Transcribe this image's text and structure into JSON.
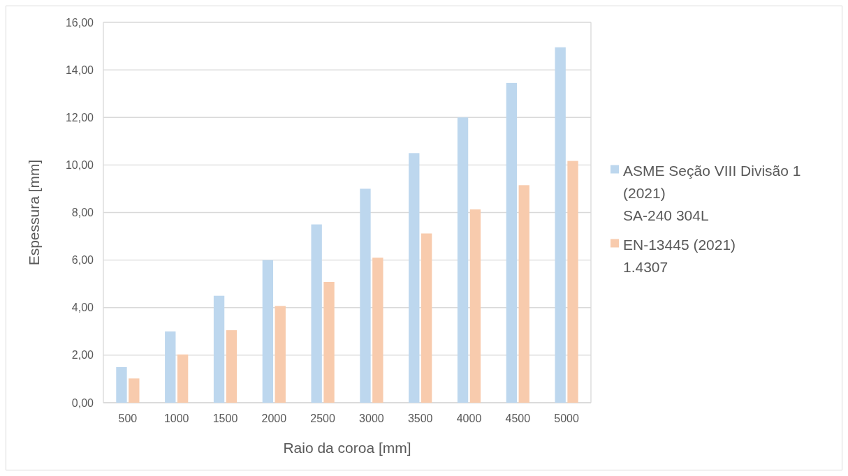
{
  "chart_data": {
    "type": "bar",
    "xlabel": "Raio da coroa [mm]",
    "ylabel": "Espessura [mm]",
    "categories": [
      "500",
      "1000",
      "1500",
      "2000",
      "2500",
      "3000",
      "3500",
      "4000",
      "4500",
      "5000"
    ],
    "series": [
      {
        "name": "ASME Seção VIII Divisão 1\n(2021)\nSA-240 304L",
        "color": "#bdd7ee",
        "values": [
          1.5,
          3.0,
          4.5,
          6.0,
          7.5,
          9.0,
          10.5,
          12.0,
          13.45,
          14.95
        ]
      },
      {
        "name": "EN-13445 (2021)\n1.4307",
        "color": "#f8cbad",
        "values": [
          1.02,
          2.03,
          3.05,
          4.07,
          5.08,
          6.1,
          7.12,
          8.13,
          9.15,
          10.17
        ]
      }
    ],
    "ylim": [
      0,
      16
    ],
    "yticks": [
      {
        "value": 0,
        "label": "0,00"
      },
      {
        "value": 2,
        "label": "2,00"
      },
      {
        "value": 4,
        "label": "4,00"
      },
      {
        "value": 6,
        "label": "6,00"
      },
      {
        "value": 8,
        "label": "8,00"
      },
      {
        "value": 10,
        "label": "10,00"
      },
      {
        "value": 12,
        "label": "12,00"
      },
      {
        "value": 14,
        "label": "14,00"
      },
      {
        "value": 16,
        "label": "16,00"
      }
    ],
    "grid": "y",
    "legend": "right"
  }
}
